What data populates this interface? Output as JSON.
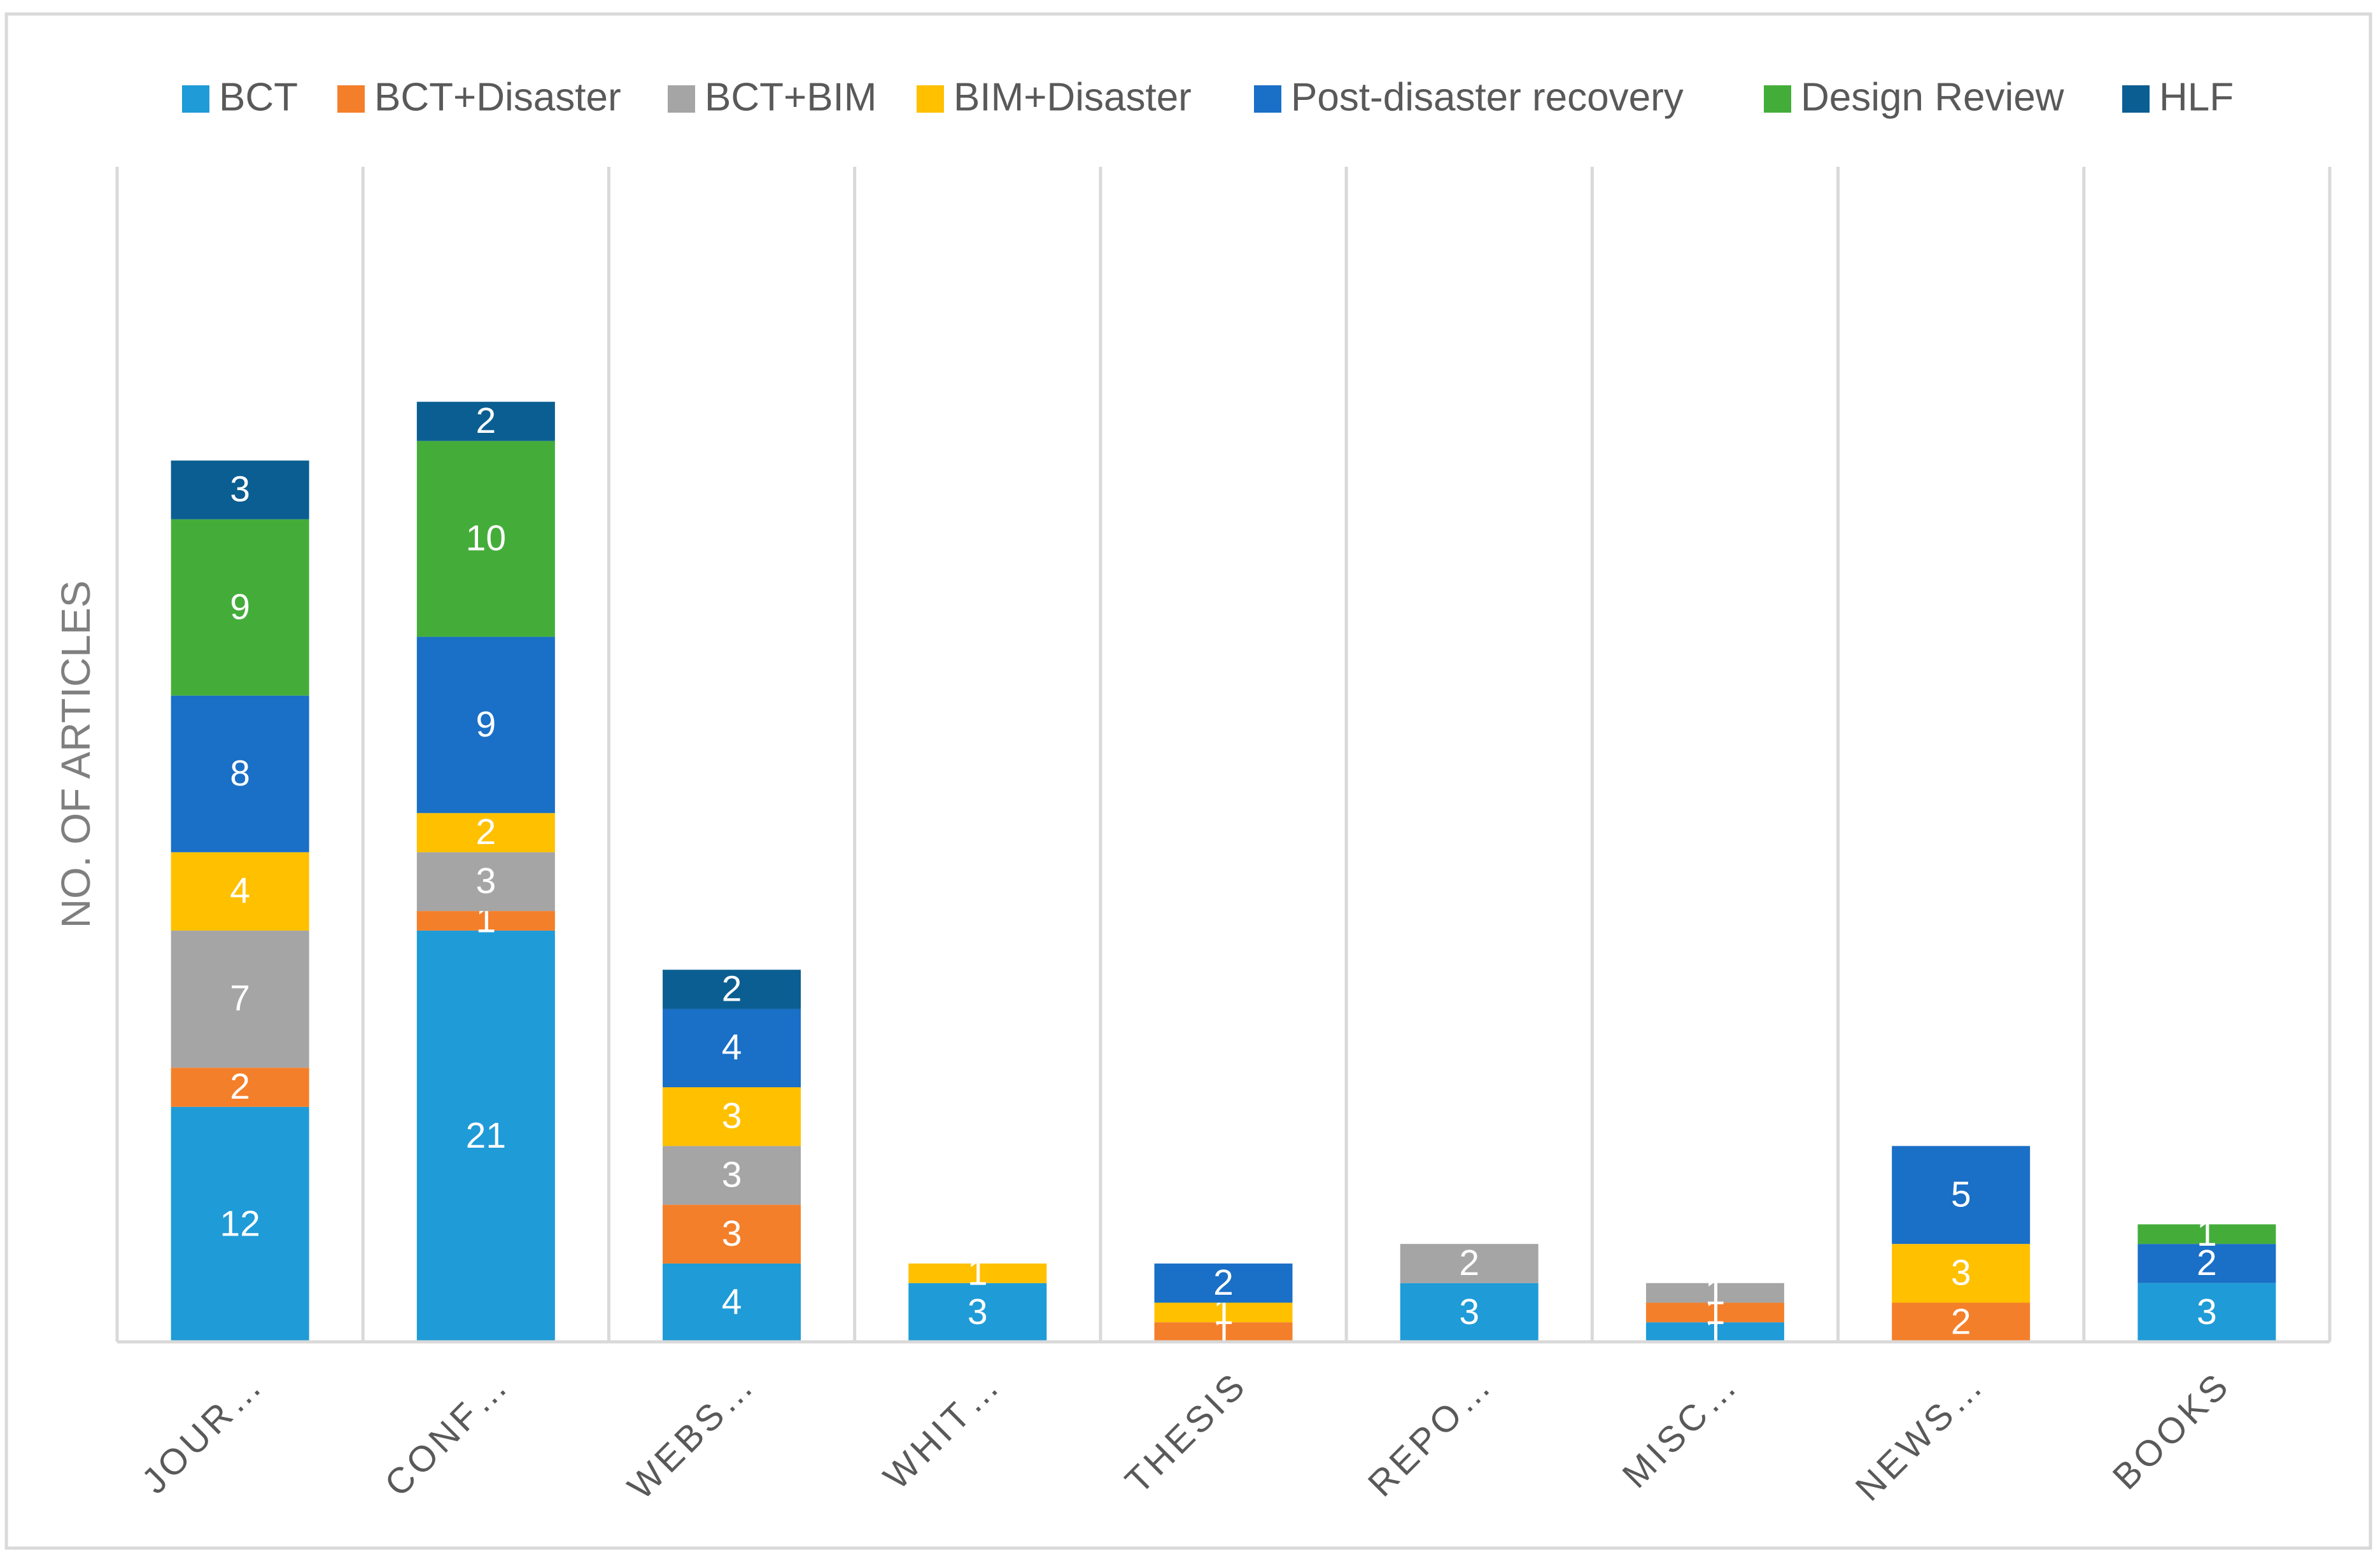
{
  "chart_data": {
    "type": "stacked_bar",
    "y_label": "NO. OF ARTICLES",
    "categories": [
      "JOUR…",
      "CONF…",
      "WEBS…",
      "WHIT…",
      "THESIS",
      "REPO…",
      "MISC…",
      "NEWS…",
      "BOOKS"
    ],
    "series": [
      {
        "name": "BCT",
        "color": "#1f9bd7",
        "values": [
          12,
          21,
          4,
          3,
          null,
          3,
          1,
          null,
          3
        ]
      },
      {
        "name": "BCT+Disaster",
        "color": "#f47f2a",
        "values": [
          2,
          1,
          3,
          null,
          1,
          null,
          1,
          2,
          null
        ]
      },
      {
        "name": "BCT+BIM",
        "color": "#a5a5a5",
        "values": [
          7,
          3,
          3,
          null,
          null,
          2,
          1,
          null,
          null
        ]
      },
      {
        "name": "BIM+Disaster",
        "color": "#ffc000",
        "values": [
          4,
          2,
          3,
          1,
          1,
          null,
          null,
          3,
          null
        ]
      },
      {
        "name": "Post-disaster recovery",
        "color": "#1a6fc6",
        "values": [
          8,
          9,
          4,
          null,
          2,
          null,
          null,
          5,
          2
        ]
      },
      {
        "name": "Design Review",
        "color": "#44ad3a",
        "values": [
          9,
          10,
          null,
          null,
          null,
          null,
          null,
          null,
          1
        ]
      },
      {
        "name": "HLF",
        "color": "#0b5e91",
        "values": [
          3,
          2,
          2,
          null,
          null,
          null,
          null,
          null,
          null
        ]
      }
    ],
    "ylim": [
      0,
      60
    ],
    "legend": "top"
  }
}
